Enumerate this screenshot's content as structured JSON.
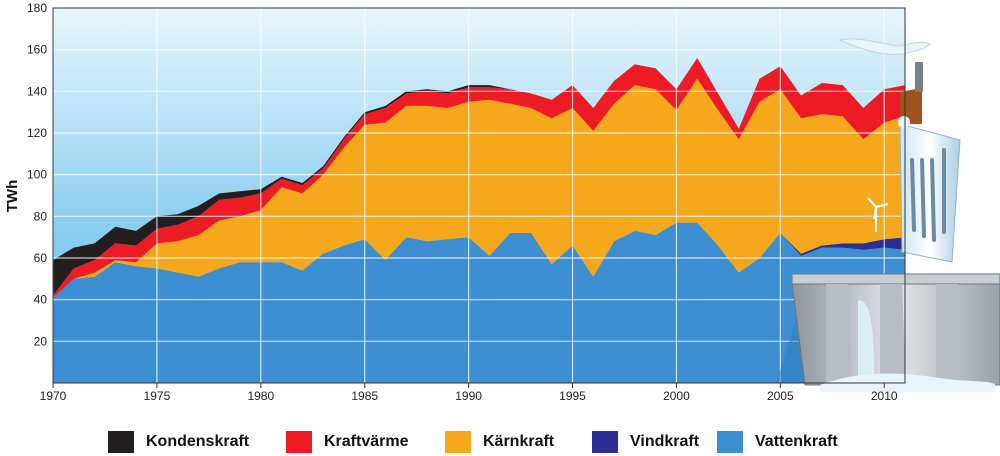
{
  "chart_data": {
    "type": "area",
    "stacked": true,
    "ylabel": "TWh",
    "xlabel": "",
    "xlim": [
      1970,
      2011
    ],
    "ylim": [
      0,
      180
    ],
    "xticks": [
      1970,
      1975,
      1980,
      1985,
      1990,
      1995,
      2000,
      2005,
      2010
    ],
    "yticks": [
      20,
      40,
      60,
      80,
      100,
      120,
      140,
      160,
      180
    ],
    "grid": true,
    "legend_position": "bottom",
    "x": [
      1970,
      1971,
      1972,
      1973,
      1974,
      1975,
      1976,
      1977,
      1978,
      1979,
      1980,
      1981,
      1982,
      1983,
      1984,
      1985,
      1986,
      1987,
      1988,
      1989,
      1990,
      1991,
      1992,
      1993,
      1994,
      1995,
      1996,
      1997,
      1998,
      1999,
      2000,
      2001,
      2002,
      2003,
      2004,
      2005,
      2006,
      2007,
      2008,
      2009,
      2010,
      2011
    ],
    "series": [
      {
        "name": "Vattenkraft",
        "color": "#3d8dd1",
        "values": [
          41,
          50,
          51,
          58,
          56,
          55,
          53,
          51,
          55,
          58,
          58,
          58,
          54,
          62,
          66,
          69,
          59,
          70,
          68,
          69,
          70,
          61,
          72,
          72,
          57,
          66,
          51,
          68,
          73,
          71,
          77,
          77,
          66,
          53,
          60,
          72,
          61,
          65,
          65,
          64,
          65,
          64
        ]
      },
      {
        "name": "Vindkraft",
        "color": "#2b2f93",
        "values": [
          0,
          0,
          0,
          0,
          0,
          0,
          0,
          0,
          0,
          0,
          0,
          0,
          0,
          0,
          0,
          0,
          0,
          0,
          0,
          0,
          0,
          0,
          0,
          0,
          0,
          0,
          0,
          0,
          0,
          0,
          0,
          0,
          0,
          0,
          0,
          0,
          1,
          1,
          2,
          3,
          4,
          6
        ]
      },
      {
        "name": "Kärnkraft",
        "color": "#f6a81c",
        "values": [
          0,
          0,
          2,
          1,
          2,
          12,
          15,
          20,
          23,
          22,
          25,
          36,
          37,
          38,
          47,
          55,
          66,
          63,
          65,
          63,
          65,
          75,
          62,
          60,
          70,
          66,
          70,
          66,
          70,
          70,
          54,
          69,
          65,
          64,
          75,
          69,
          65,
          63,
          61,
          50,
          56,
          58
        ]
      },
      {
        "name": "Kraftvärme",
        "color": "#ed1c24",
        "values": [
          1,
          5,
          6,
          8,
          8,
          7,
          8,
          9,
          10,
          9,
          8,
          4,
          4,
          3,
          4,
          5,
          7,
          6,
          7,
          7,
          7,
          6,
          7,
          7,
          9,
          11,
          11,
          11,
          10,
          10,
          10,
          10,
          8,
          5,
          11,
          11,
          11,
          15,
          15,
          15,
          16,
          15
        ]
      },
      {
        "name": "Kondenskraft",
        "color": "#231f20",
        "values": [
          17,
          10,
          8,
          8,
          7,
          6,
          5,
          5,
          3,
          3,
          2,
          1,
          1,
          1,
          1,
          1,
          1,
          1,
          1,
          1,
          1,
          1,
          0,
          0,
          0,
          0,
          0,
          0,
          0,
          0,
          0,
          0,
          0,
          0,
          0,
          0,
          0,
          0,
          0,
          0,
          0,
          0
        ]
      }
    ]
  },
  "legend": {
    "items": [
      {
        "label": "Kondenskraft",
        "color": "#231f20"
      },
      {
        "label": "Kraftvärme",
        "color": "#ed1c24"
      },
      {
        "label": "Kärnkraft",
        "color": "#f6a81c"
      },
      {
        "label": "Vindkraft",
        "color": "#2b2f93"
      },
      {
        "label": "Vattenkraft",
        "color": "#3d8dd1"
      }
    ]
  }
}
